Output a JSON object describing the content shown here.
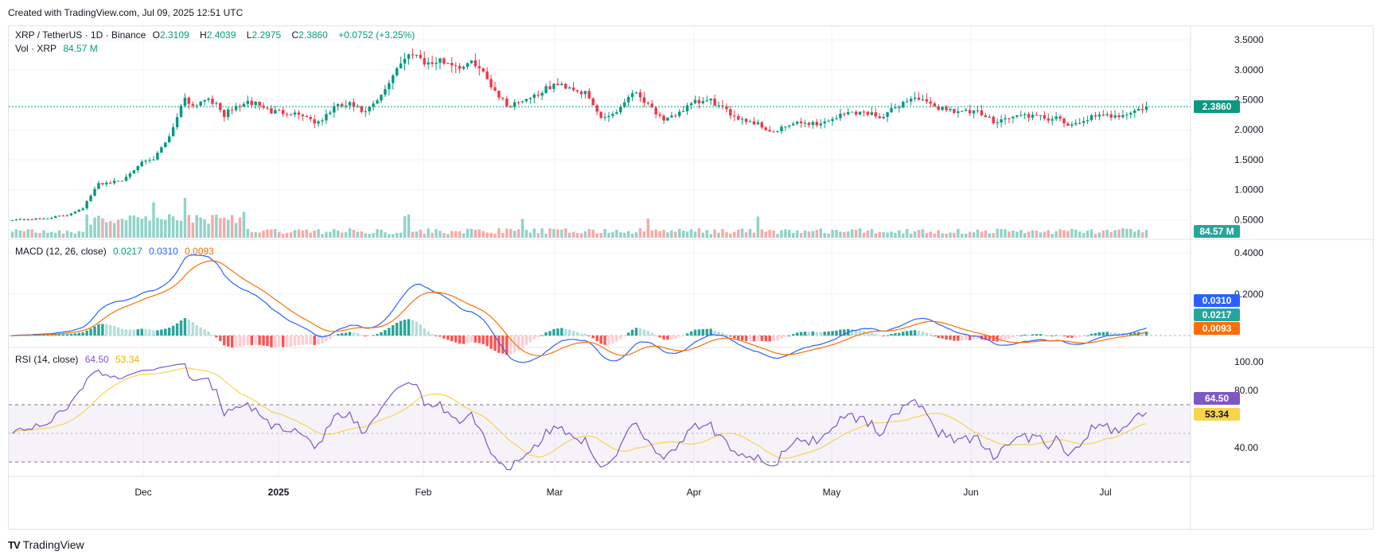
{
  "caption": "Created with TradingView.com, Jul 09, 2025 12:51 UTC",
  "brand": "TradingView",
  "brand_logo": "TV",
  "legend": {
    "symbol": "XRP / TetherUS · 1D · Binance",
    "o_label": "O",
    "o": "2.3109",
    "h_label": "H",
    "h": "2.4039",
    "l_label": "L",
    "l": "2.2975",
    "c_label": "C",
    "c": "2.3860",
    "change": "+0.0752 (+3.25%)",
    "vol_label": "Vol · XRP",
    "vol": "84.57 M",
    "macd_label": "MACD (12, 26, close)",
    "macd_hist": "0.0217",
    "macd_line": "0.0310",
    "macd_signal": "0.0093",
    "rsi_label": "RSI (14, close)",
    "rsi": "64.50",
    "rsi_ma": "53.34"
  },
  "colors": {
    "up": "#089981",
    "down": "#f23645",
    "vol_up": "#8fd3c9",
    "vol_down": "#f7a9a7",
    "macd": "#2962ff",
    "signal": "#ff6d00",
    "hist_up_strong": "#26a69a",
    "hist_up_weak": "#b2dfdb",
    "hist_down_strong": "#ff5252",
    "hist_down_weak": "#ffcdd2",
    "rsi": "#7e57c2",
    "rsi_ma": "#f7d44c",
    "rsi_band": "#7e57c2"
  },
  "chart_data": [
    {
      "type": "candlestick",
      "title": "XRP / TetherUS · 1D · Binance",
      "x_tick_labels": [
        "Dec",
        "2025",
        "Feb",
        "Mar",
        "Apr",
        "May",
        "Jun",
        "Jul"
      ],
      "y_tick_labels": [
        "3.5000",
        "3.0000",
        "2.5000",
        "2.0000",
        "1.5000",
        "1.0000",
        "0.5000"
      ],
      "last_price": "2.3860",
      "last_volume": "84.57 M",
      "keypoints": [
        [
          0,
          0.5
        ],
        [
          8,
          0.52
        ],
        [
          14,
          0.58
        ],
        [
          18,
          0.7
        ],
        [
          22,
          1.1
        ],
        [
          28,
          1.15
        ],
        [
          32,
          1.42
        ],
        [
          36,
          1.5
        ],
        [
          40,
          1.9
        ],
        [
          44,
          2.55
        ],
        [
          46,
          2.4
        ],
        [
          50,
          2.55
        ],
        [
          54,
          2.25
        ],
        [
          58,
          2.42
        ],
        [
          62,
          2.45
        ],
        [
          66,
          2.3
        ],
        [
          70,
          2.3
        ],
        [
          74,
          2.25
        ],
        [
          78,
          2.1
        ],
        [
          82,
          2.38
        ],
        [
          86,
          2.42
        ],
        [
          90,
          2.28
        ],
        [
          94,
          2.55
        ],
        [
          98,
          3.05
        ],
        [
          102,
          3.3
        ],
        [
          106,
          3.1
        ],
        [
          110,
          3.15
        ],
        [
          114,
          3.05
        ],
        [
          118,
          3.12
        ],
        [
          122,
          2.75
        ],
        [
          126,
          2.4
        ],
        [
          130,
          2.5
        ],
        [
          134,
          2.6
        ],
        [
          138,
          2.75
        ],
        [
          142,
          2.72
        ],
        [
          146,
          2.6
        ],
        [
          150,
          2.2
        ],
        [
          154,
          2.3
        ],
        [
          158,
          2.65
        ],
        [
          162,
          2.45
        ],
        [
          166,
          2.12
        ],
        [
          170,
          2.3
        ],
        [
          174,
          2.45
        ],
        [
          178,
          2.48
        ],
        [
          182,
          2.3
        ],
        [
          186,
          2.18
        ],
        [
          190,
          2.1
        ],
        [
          192,
          2.02
        ],
        [
          194,
          1.95
        ],
        [
          198,
          2.08
        ],
        [
          202,
          2.12
        ],
        [
          206,
          2.1
        ],
        [
          210,
          2.22
        ],
        [
          214,
          2.3
        ],
        [
          218,
          2.28
        ],
        [
          222,
          2.22
        ],
        [
          226,
          2.42
        ],
        [
          230,
          2.55
        ],
        [
          234,
          2.4
        ],
        [
          238,
          2.35
        ],
        [
          242,
          2.3
        ],
        [
          246,
          2.28
        ],
        [
          250,
          2.15
        ],
        [
          254,
          2.2
        ],
        [
          258,
          2.25
        ],
        [
          262,
          2.2
        ],
        [
          266,
          2.18
        ],
        [
          270,
          2.05
        ],
        [
          274,
          2.2
        ],
        [
          278,
          2.22
        ],
        [
          282,
          2.25
        ],
        [
          286,
          2.3
        ],
        [
          289,
          2.386
        ]
      ]
    },
    {
      "type": "bar",
      "title": "MACD (12, 26, close)",
      "y_tick_labels": [
        "0.4000",
        "0.2000"
      ],
      "last_values": [
        "0.0310",
        "0.0217",
        "0.0093"
      ]
    },
    {
      "type": "line",
      "title": "RSI (14, close)",
      "y_tick_labels": [
        "100.00",
        "80.00",
        "40.00"
      ],
      "bands": [
        30,
        70
      ],
      "last_values": [
        "64.50",
        "53.34"
      ]
    }
  ]
}
